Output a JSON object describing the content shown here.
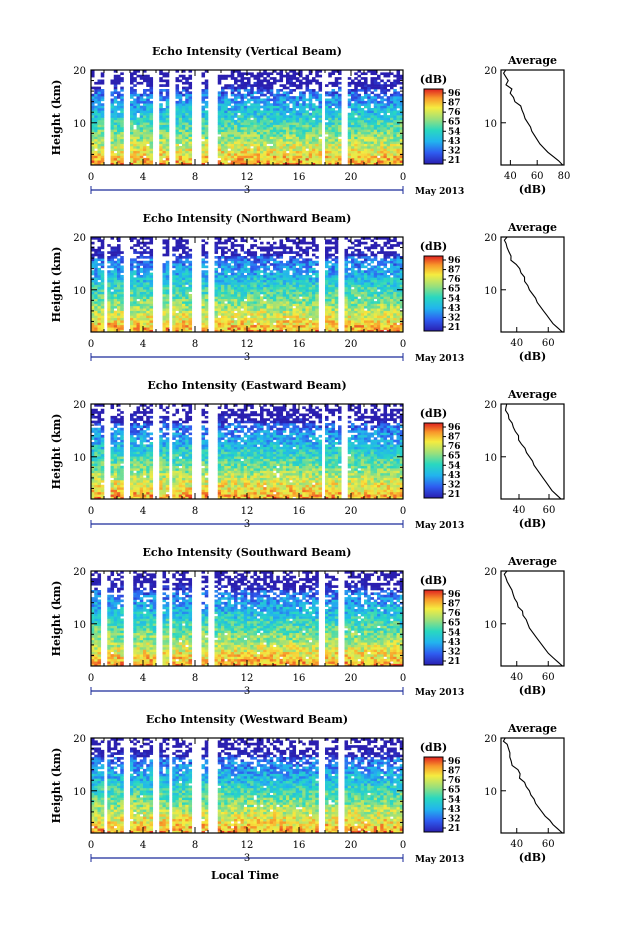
{
  "figure": {
    "date_label": "May 2013",
    "day_label": "3",
    "xlabel": "Local Time",
    "colorbar_unit": "(dB)",
    "colorbar_ticks": [
      "96",
      "87",
      "76",
      "65",
      "54",
      "43",
      "32",
      "21"
    ],
    "side_title": "Average",
    "side_xlabel": "(dB)"
  },
  "chart_data": [
    {
      "type": "heatmap",
      "title": "Echo Intensity (Vertical Beam)",
      "xlabel": "",
      "ylabel": "Height (km)",
      "xlim": [
        0,
        24
      ],
      "ylim": [
        2,
        20
      ],
      "xticks": [
        "0",
        "4",
        "8",
        "12",
        "16",
        "20",
        "0"
      ],
      "yticks": [
        "10",
        "20"
      ],
      "zlim": [
        21,
        96
      ],
      "gaps": [
        [
          1.1,
          1.6
        ],
        [
          2.5,
          3.1
        ],
        [
          4.7,
          5.3
        ],
        [
          6.0,
          6.4
        ],
        [
          7.8,
          8.4
        ],
        [
          9.0,
          9.7
        ],
        [
          17.7,
          18.1
        ],
        [
          19.2,
          19.7
        ]
      ],
      "profile": {
        "title": "Average",
        "xlabel": "(dB)",
        "xlim": [
          33,
          80
        ],
        "xticks": [
          40,
          60,
          80
        ],
        "x": [
          79,
          76,
          72,
          68,
          65,
          62,
          60,
          58,
          56,
          55,
          53,
          51,
          50,
          48,
          47,
          44,
          43,
          41,
          40,
          38,
          37,
          37,
          36,
          36
        ],
        "y": [
          2,
          2.8,
          3.6,
          4.4,
          5.2,
          6,
          6.8,
          7.6,
          8.4,
          9.2,
          10,
          10.8,
          11.6,
          12.4,
          13.2,
          14,
          14.8,
          15.6,
          16.4,
          17.2,
          18,
          18.8,
          19.4,
          20
        ]
      }
    },
    {
      "type": "heatmap",
      "title": "Echo Intensity (Northward Beam)",
      "xlabel": "",
      "ylabel": "Height (km)",
      "xlim": [
        0,
        24
      ],
      "ylim": [
        2,
        20
      ],
      "xticks": [
        "0",
        "4",
        "8",
        "12",
        "16",
        "20",
        "0"
      ],
      "yticks": [
        "10",
        "20"
      ],
      "zlim": [
        21,
        96
      ],
      "gaps": [
        [
          0.9,
          1.3
        ],
        [
          2.5,
          3.1
        ],
        [
          4.8,
          5.4
        ],
        [
          5.9,
          6.3
        ],
        [
          7.8,
          8.4
        ],
        [
          8.9,
          9.6
        ],
        [
          17.6,
          18.0
        ],
        [
          19.1,
          19.6
        ]
      ],
      "profile": {
        "title": "Average",
        "xlabel": "(dB)",
        "xlim": [
          30,
          70
        ],
        "xticks": [
          40,
          60
        ],
        "x": [
          69,
          66,
          63,
          61,
          59,
          57,
          55,
          53,
          52,
          50,
          48,
          47,
          45,
          44,
          42,
          41,
          39,
          37,
          36,
          35,
          34,
          33,
          32,
          33
        ],
        "y": [
          2,
          2.8,
          3.6,
          4.4,
          5.2,
          6,
          6.8,
          7.6,
          8.4,
          9.2,
          10,
          10.8,
          11.6,
          12.4,
          13.2,
          14,
          14.8,
          15.6,
          16.4,
          17.2,
          18,
          18.8,
          19.4,
          20
        ]
      }
    },
    {
      "type": "heatmap",
      "title": "Echo Intensity (Eastward Beam)",
      "xlabel": "",
      "ylabel": "Height (km)",
      "xlim": [
        0,
        24
      ],
      "ylim": [
        2,
        20
      ],
      "xticks": [
        "0",
        "4",
        "8",
        "12",
        "16",
        "20",
        "0"
      ],
      "yticks": [
        "10",
        "20"
      ],
      "zlim": [
        21,
        96
      ],
      "gaps": [
        [
          1.0,
          1.4
        ],
        [
          2.5,
          3.1
        ],
        [
          4.7,
          5.3
        ],
        [
          5.9,
          6.3
        ],
        [
          7.8,
          8.4
        ],
        [
          9.0,
          9.7
        ],
        [
          17.7,
          18.1
        ],
        [
          19.2,
          19.7
        ]
      ],
      "profile": {
        "title": "Average",
        "xlabel": "(dB)",
        "xlim": [
          28,
          70
        ],
        "xticks": [
          40,
          60
        ],
        "x": [
          68,
          65,
          62,
          60,
          58,
          56,
          54,
          52,
          50,
          49,
          47,
          45,
          44,
          42,
          41,
          39,
          37,
          36,
          35,
          34,
          33,
          32,
          31,
          32
        ],
        "y": [
          2,
          2.8,
          3.6,
          4.4,
          5.2,
          6,
          6.8,
          7.6,
          8.4,
          9.2,
          10,
          10.8,
          11.6,
          12.4,
          13.2,
          14,
          14.8,
          15.6,
          16.4,
          17.2,
          18,
          18.8,
          19.4,
          20
        ]
      }
    },
    {
      "type": "heatmap",
      "title": "Echo Intensity (Southward Beam)",
      "xlabel": "",
      "ylabel": "Height (km)",
      "xlim": [
        0,
        24
      ],
      "ylim": [
        2,
        20
      ],
      "xticks": [
        "0",
        "4",
        "8",
        "12",
        "16",
        "20",
        "0"
      ],
      "yticks": [
        "10",
        "20"
      ],
      "zlim": [
        21,
        96
      ],
      "gaps": [
        [
          0.8,
          1.2
        ],
        [
          2.6,
          3.2
        ],
        [
          5.0,
          5.5
        ],
        [
          5.9,
          6.3
        ],
        [
          7.8,
          8.4
        ],
        [
          8.9,
          9.6
        ],
        [
          17.6,
          18.0
        ],
        [
          19.0,
          19.6
        ]
      ],
      "profile": {
        "title": "Average",
        "xlabel": "(dB)",
        "xlim": [
          30,
          70
        ],
        "xticks": [
          40,
          60
        ],
        "x": [
          69,
          66,
          63,
          60,
          58,
          56,
          54,
          52,
          50,
          48,
          47,
          46,
          44,
          43,
          41,
          40,
          38,
          37,
          36,
          35,
          34,
          33,
          32,
          33
        ],
        "y": [
          2,
          2.8,
          3.6,
          4.4,
          5.2,
          6,
          6.8,
          7.6,
          8.4,
          9.2,
          10,
          10.8,
          11.6,
          12.4,
          13.2,
          14,
          14.8,
          15.6,
          16.4,
          17.2,
          18,
          18.8,
          19.4,
          20
        ]
      }
    },
    {
      "type": "heatmap",
      "title": "Echo Intensity (Westward Beam)",
      "xlabel": "",
      "ylabel": "Height (km)",
      "xlim": [
        0,
        24
      ],
      "ylim": [
        2,
        20
      ],
      "xticks": [
        "0",
        "4",
        "8",
        "12",
        "16",
        "20",
        "0"
      ],
      "yticks": [
        "10",
        "20"
      ],
      "zlim": [
        21,
        96
      ],
      "gaps": [
        [
          0.9,
          1.3
        ],
        [
          2.5,
          3.1
        ],
        [
          4.7,
          5.3
        ],
        [
          5.9,
          6.3
        ],
        [
          7.8,
          8.4
        ],
        [
          9.0,
          9.7
        ],
        [
          17.6,
          18.0
        ],
        [
          19.1,
          19.6
        ]
      ],
      "profile": {
        "title": "Average",
        "xlabel": "(dB)",
        "xlim": [
          30,
          70
        ],
        "xticks": [
          40,
          60
        ],
        "x": [
          69,
          66,
          63,
          61,
          58,
          56,
          54,
          52,
          51,
          49,
          48,
          46,
          45,
          43,
          42,
          40,
          38,
          37,
          36,
          35,
          34,
          33,
          32,
          33
        ],
        "y": [
          2,
          2.8,
          3.6,
          4.4,
          5.2,
          6,
          6.8,
          7.6,
          8.4,
          9.2,
          10,
          10.8,
          11.6,
          12.4,
          13.2,
          14,
          14.8,
          15.6,
          16.4,
          17.2,
          18,
          18.8,
          19.4,
          20
        ]
      }
    }
  ]
}
